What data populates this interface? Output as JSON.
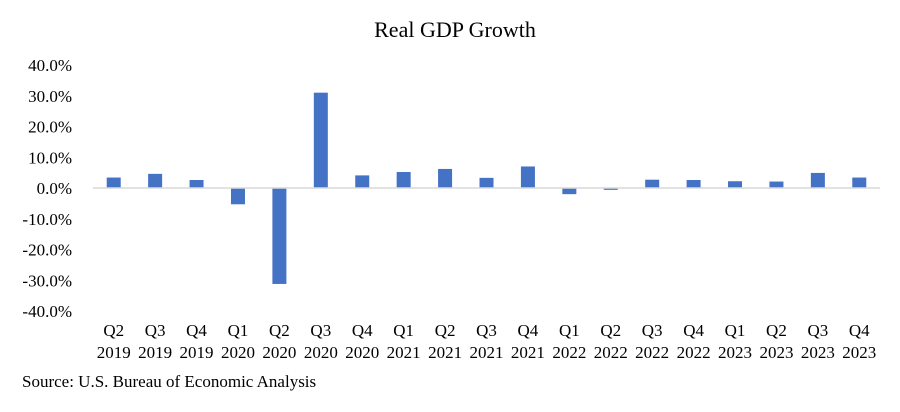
{
  "chart_data": {
    "type": "bar",
    "title": "Real GDP Growth",
    "xlabel": "",
    "ylabel": "",
    "categories": [
      [
        "Q2",
        "2019"
      ],
      [
        "Q3",
        "2019"
      ],
      [
        "Q4",
        "2019"
      ],
      [
        "Q1",
        "2020"
      ],
      [
        "Q2",
        "2020"
      ],
      [
        "Q3",
        "2020"
      ],
      [
        "Q4",
        "2020"
      ],
      [
        "Q1",
        "2021"
      ],
      [
        "Q2",
        "2021"
      ],
      [
        "Q3",
        "2021"
      ],
      [
        "Q4",
        "2021"
      ],
      [
        "Q1",
        "2022"
      ],
      [
        "Q2",
        "2022"
      ],
      [
        "Q3",
        "2022"
      ],
      [
        "Q4",
        "2022"
      ],
      [
        "Q1",
        "2023"
      ],
      [
        "Q2",
        "2023"
      ],
      [
        "Q3",
        "2023"
      ],
      [
        "Q4",
        "2023"
      ]
    ],
    "values": [
      3.4,
      4.6,
      2.6,
      -5.3,
      -31.2,
      31.0,
      4.1,
      5.2,
      6.2,
      3.3,
      7.0,
      -2.0,
      -0.6,
      2.7,
      2.6,
      2.2,
      2.1,
      4.9,
      3.4
    ],
    "ylim": [
      -40,
      40
    ],
    "yticks": [
      40,
      30,
      20,
      10,
      0,
      -10,
      -20,
      -30,
      -40
    ],
    "ytick_labels": [
      "40.0%",
      "30.0%",
      "20.0%",
      "10.0%",
      "0.0%",
      "-10.0%",
      "-20.0%",
      "-30.0%",
      "-40.0%"
    ],
    "grid": false,
    "legend": "none",
    "bar_color": "#4472C4",
    "axis_color": "#D9D9D9"
  },
  "source_note": "Source: U.S. Bureau of Economic Analysis"
}
